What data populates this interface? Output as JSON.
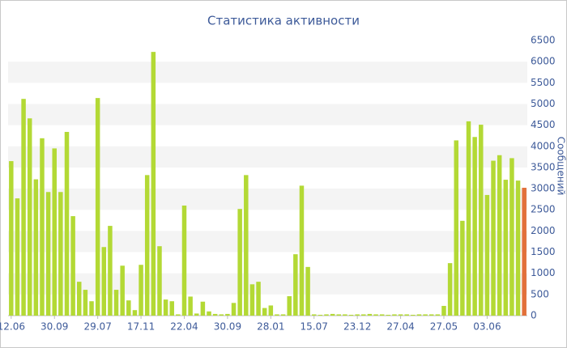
{
  "chart_data": {
    "type": "bar",
    "title": "Статистика активности",
    "y_axis_label": "Сообщений",
    "categories": [
      "12.06",
      null,
      null,
      null,
      null,
      null,
      null,
      "30.09",
      null,
      null,
      null,
      null,
      null,
      null,
      "29.07",
      null,
      null,
      null,
      null,
      null,
      null,
      "17.11",
      null,
      null,
      null,
      null,
      null,
      null,
      "22.04",
      null,
      null,
      null,
      null,
      null,
      null,
      "30.09",
      null,
      null,
      null,
      null,
      null,
      null,
      "28.01",
      null,
      null,
      null,
      null,
      null,
      null,
      "15.07",
      null,
      null,
      null,
      null,
      null,
      null,
      "23.12",
      null,
      null,
      null,
      null,
      null,
      null,
      "27.04",
      null,
      null,
      null,
      null,
      null,
      null,
      "27.05",
      null,
      null,
      null,
      null,
      null,
      null,
      "03.06",
      null,
      null,
      null,
      null,
      null,
      null
    ],
    "values": [
      3650,
      2770,
      5120,
      4660,
      3220,
      4190,
      2920,
      3950,
      2920,
      4340,
      2350,
      800,
      610,
      340,
      5140,
      1620,
      2120,
      610,
      1180,
      360,
      130,
      1200,
      3320,
      6230,
      1640,
      380,
      340,
      30,
      2600,
      450,
      50,
      330,
      100,
      40,
      30,
      40,
      300,
      2520,
      3320,
      740,
      800,
      180,
      240,
      30,
      30,
      460,
      1450,
      3070,
      1150,
      30,
      20,
      30,
      40,
      30,
      30,
      20,
      30,
      30,
      40,
      30,
      30,
      20,
      30,
      30,
      30,
      20,
      30,
      30,
      30,
      30,
      230,
      1240,
      4140,
      2240,
      4590,
      4220,
      4510,
      2850,
      3660,
      3790,
      3210,
      3720,
      3190,
      3020
    ],
    "colors": [
      "#b3d935",
      "#b3d935",
      "#b3d935",
      "#b3d935",
      "#b3d935",
      "#b3d935",
      "#b3d935",
      "#b3d935",
      "#b3d935",
      "#b3d935",
      "#b3d935",
      "#b3d935",
      "#b3d935",
      "#b3d935",
      "#b3d935",
      "#b3d935",
      "#b3d935",
      "#b3d935",
      "#b3d935",
      "#b3d935",
      "#b3d935",
      "#b3d935",
      "#b3d935",
      "#b3d935",
      "#b3d935",
      "#b3d935",
      "#b3d935",
      "#b3d935",
      "#b3d935",
      "#b3d935",
      "#b3d935",
      "#b3d935",
      "#b3d935",
      "#b3d935",
      "#b3d935",
      "#b3d935",
      "#b3d935",
      "#b3d935",
      "#b3d935",
      "#b3d935",
      "#b3d935",
      "#b3d935",
      "#b3d935",
      "#b3d935",
      "#b3d935",
      "#b3d935",
      "#b3d935",
      "#b3d935",
      "#b3d935",
      "#b3d935",
      "#b3d935",
      "#b3d935",
      "#b3d935",
      "#b3d935",
      "#b3d935",
      "#b3d935",
      "#b3d935",
      "#b3d935",
      "#b3d935",
      "#b3d935",
      "#b3d935",
      "#b3d935",
      "#b3d935",
      "#b3d935",
      "#b3d935",
      "#b3d935",
      "#b3d935",
      "#b3d935",
      "#b3d935",
      "#b3d935",
      "#b3d935",
      "#b3d935",
      "#b3d935",
      "#b3d935",
      "#b3d935",
      "#b3d935",
      "#b3d935",
      "#b3d935",
      "#b3d935",
      "#b3d935",
      "#b3d935",
      "#b3d935",
      "#b3d935",
      "#e2703a"
    ],
    "ylim": [
      0,
      6500
    ],
    "yticks": [
      0,
      500,
      1000,
      1500,
      2000,
      2500,
      3000,
      3500,
      4000,
      4500,
      5000,
      5500,
      6000,
      6500
    ],
    "grid": "bands"
  }
}
